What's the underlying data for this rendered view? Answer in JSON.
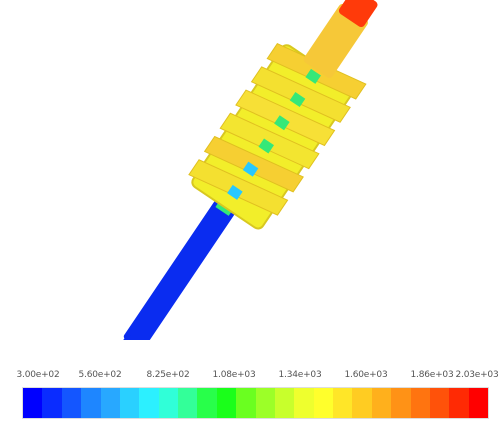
{
  "legend": {
    "labels": [
      "3.00e+02",
      "5.60e+02",
      "8.25e+02",
      "1.08e+03",
      "1.34e+03",
      "1.60e+03",
      "1.86e+03",
      "2.03e+03"
    ],
    "colors": [
      "#0000ff",
      "#0a2cff",
      "#1456ff",
      "#1e86ff",
      "#28a8ff",
      "#2ad0ff",
      "#2cf0ff",
      "#30ffd8",
      "#33ff99",
      "#28ff4a",
      "#1aff1a",
      "#6aff20",
      "#9cff28",
      "#c8ff2c",
      "#eeff2e",
      "#ffff2c",
      "#ffe628",
      "#ffcc22",
      "#ffb01c",
      "#ff9216",
      "#ff7410",
      "#ff520a",
      "#ff2a04",
      "#ff0000"
    ]
  },
  "model": {
    "shaft_color": "#0a2cf0",
    "body_color": "#f2ee2a",
    "band_colors": [
      "#f4e030",
      "#f6cf32",
      "#f3e530",
      "#f7e036"
    ],
    "hot_tip_color": "#ff3a0a",
    "inner_core_color": "#35e878"
  }
}
